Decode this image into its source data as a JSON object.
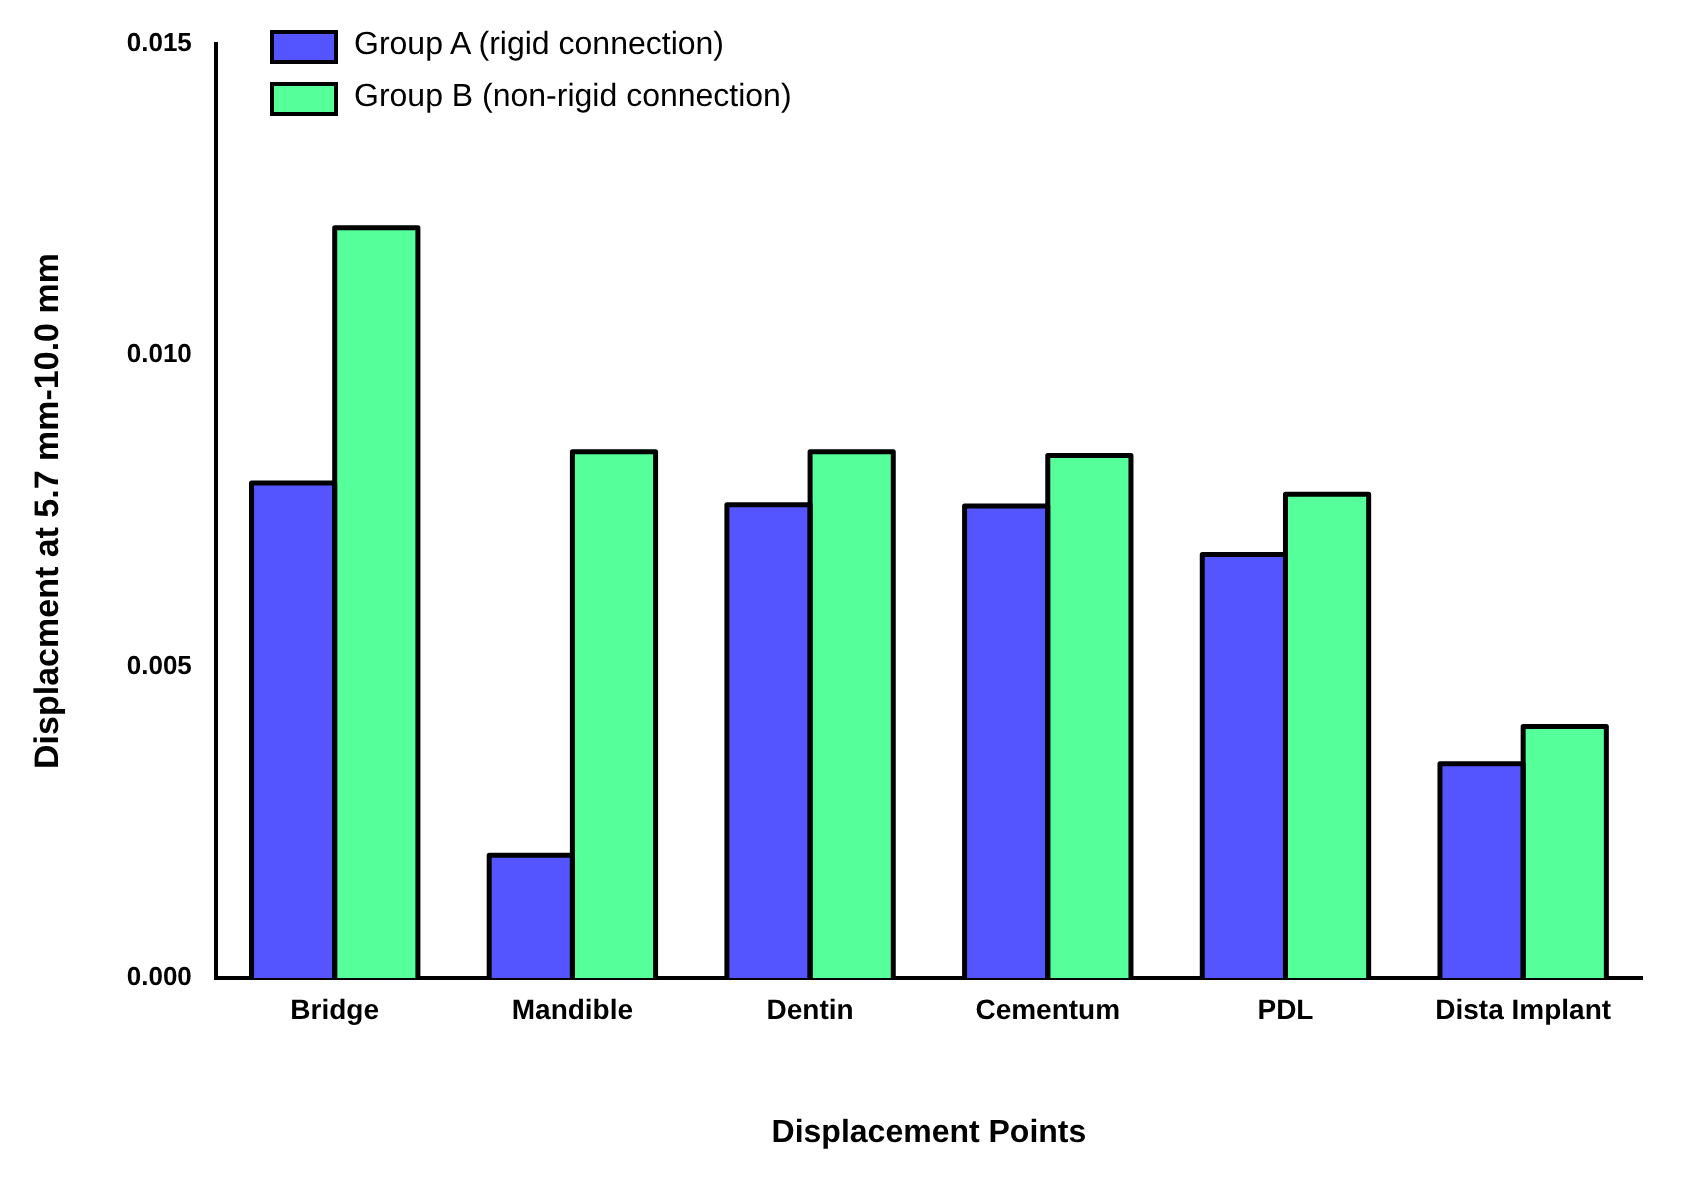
{
  "chart_data": {
    "type": "bar",
    "xlabel": "Displacement Points",
    "ylabel": "Displacment at 5.7 mm-10.0 mm",
    "categories": [
      "Bridge",
      "Mandible",
      "Dentin",
      "Cementum",
      "PDL",
      "Dista Implant"
    ],
    "series": [
      {
        "name": "Group A (rigid connection)",
        "color": "#5555ff",
        "values": [
          0.00795,
          0.00197,
          0.0076,
          0.00758,
          0.0068,
          0.00344
        ]
      },
      {
        "name": "Group B (non-rigid connection)",
        "color": "#55ff99",
        "values": [
          0.01205,
          0.00845,
          0.00845,
          0.00839,
          0.00777,
          0.00404
        ]
      }
    ],
    "ylim": [
      0,
      0.015
    ],
    "yticks": [
      {
        "value": 0,
        "label": "0.000"
      },
      {
        "value": 0.005,
        "label": "0.005"
      },
      {
        "value": 0.01,
        "label": "0.010"
      },
      {
        "value": 0.015,
        "label": "0.015"
      }
    ],
    "grid": false,
    "legend": "top left"
  }
}
